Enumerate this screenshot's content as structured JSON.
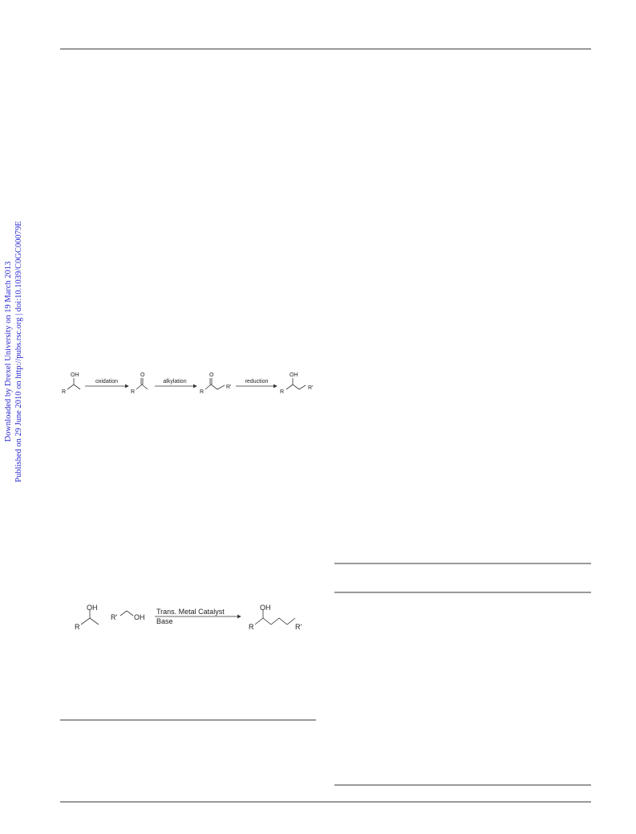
{
  "sidebar": {
    "line1": "Downloaded by Drexel University on 19 March 2013",
    "line2": "Published on 29 June 2010 on http://pubs.rsc.org | doi:10.1039/C0GC00079E"
  },
  "scheme1": {
    "reactant": {
      "oh": "OH",
      "r": "R"
    },
    "step1": "oxidation",
    "intermediate1": {
      "o": "O",
      "r": "R"
    },
    "step2": "alkylation",
    "intermediate2": {
      "o": "O",
      "r": "R",
      "r_prime": "R'"
    },
    "step3": "reduction",
    "product": {
      "oh": "OH",
      "r": "R",
      "r_prime": "R'"
    }
  },
  "scheme2": {
    "alcohol1": {
      "oh": "OH",
      "r": "R"
    },
    "alcohol2": {
      "r_prime": "R'",
      "oh": "OH"
    },
    "catalyst": "Trans. Metal Catalyst",
    "base": "Base",
    "product": {
      "oh": "OH",
      "r": "R",
      "r_prime": "R'"
    }
  }
}
